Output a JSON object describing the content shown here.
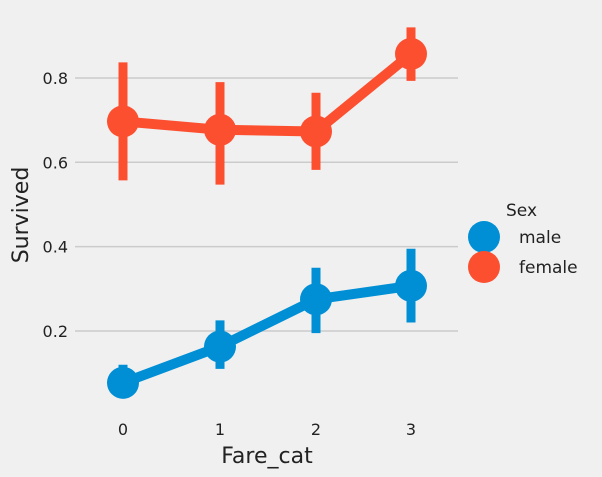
{
  "chart_data": {
    "type": "point",
    "xlabel": "Fare_cat",
    "ylabel": "Survived",
    "categories": [
      "0",
      "1",
      "2",
      "3"
    ],
    "y_ticks": [
      0.2,
      0.4,
      0.6,
      0.8
    ],
    "y_tick_labels": [
      "0.2",
      "0.4",
      "0.6",
      "0.8"
    ],
    "ylim": [
      0.02,
      0.93
    ],
    "grid": "horizontal",
    "legend": {
      "title": "Sex",
      "placement": "right"
    },
    "series": [
      {
        "name": "male",
        "color": "#008fd5",
        "values": [
          0.077,
          0.163,
          0.275,
          0.307
        ],
        "ci_low": [
          0.045,
          0.11,
          0.195,
          0.22
        ],
        "ci_high": [
          0.12,
          0.225,
          0.35,
          0.395
        ]
      },
      {
        "name": "female",
        "color": "#fc4f30",
        "values": [
          0.697,
          0.677,
          0.673,
          0.857
        ],
        "ci_low": [
          0.557,
          0.547,
          0.582,
          0.793
        ],
        "ci_high": [
          0.837,
          0.79,
          0.765,
          0.92
        ]
      }
    ]
  }
}
